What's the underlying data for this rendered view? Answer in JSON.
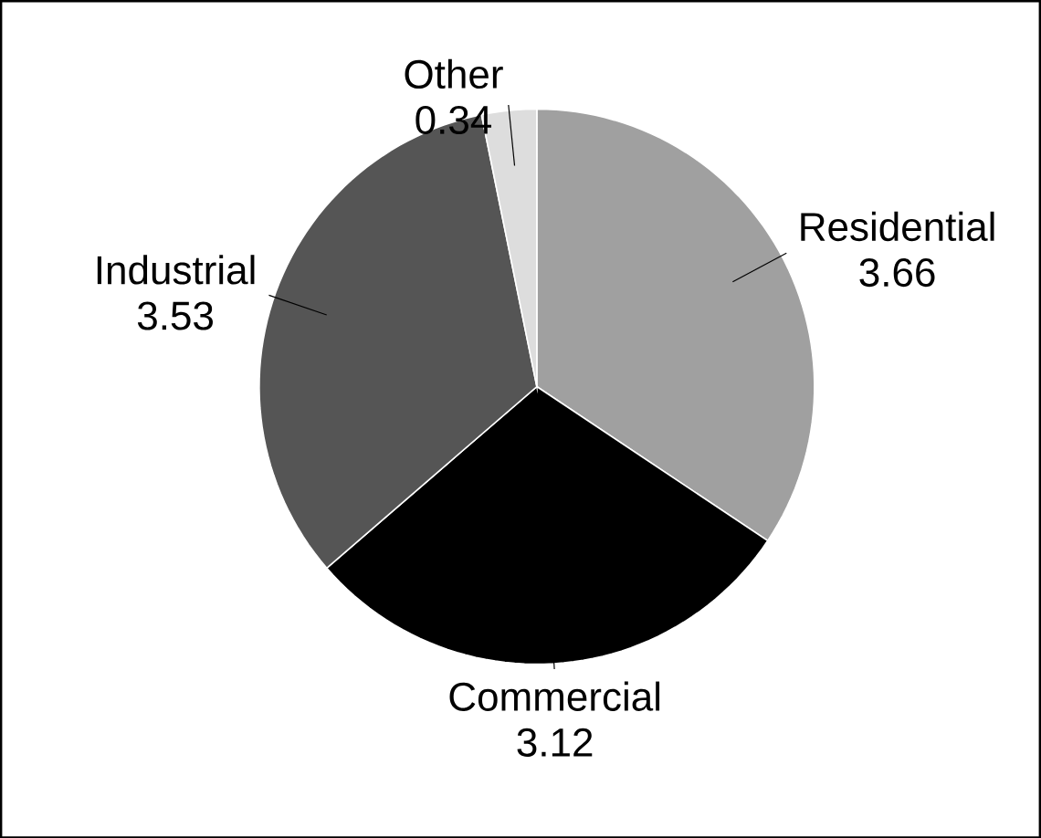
{
  "chart_data": {
    "type": "pie",
    "categories": [
      "Residential",
      "Commercial",
      "Industrial",
      "Other"
    ],
    "values": [
      3.66,
      3.12,
      3.53,
      0.34
    ],
    "colors": [
      "#a0a0a0",
      "#000000",
      "#555555",
      "#dddddd"
    ],
    "data_labels": true
  }
}
